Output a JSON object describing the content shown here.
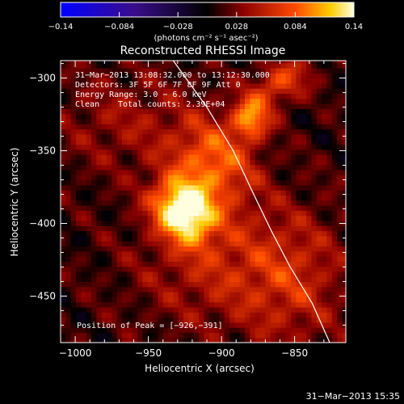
{
  "chart_data": {
    "type": "heatmap",
    "title": "Reconstructed RHESSI Image",
    "xlabel": "Heliocentric X (arcsec)",
    "ylabel": "Heliocentric Y (arcsec)",
    "xlim": [
      -1010,
      -815
    ],
    "ylim": [
      -482,
      -288
    ],
    "x_ticks": [
      -1000,
      -950,
      -900,
      -850
    ],
    "x_tick_labels": [
      "−1000",
      "−950",
      "−900",
      "−850"
    ],
    "y_ticks": [
      -300,
      -350,
      -400,
      -450
    ],
    "y_tick_labels": [
      "−300",
      "−350",
      "−400",
      "−450"
    ],
    "colorbar": {
      "min": -0.14,
      "max": 0.14,
      "ticks": [
        -0.14,
        -0.084,
        -0.028,
        0.028,
        0.084,
        0.14
      ],
      "tick_labels": [
        "−0.14",
        "−0.084",
        "−0.028",
        "0.028",
        "0.084",
        "0.14"
      ],
      "unit_label": "(photons cm⁻² s⁻¹ asec⁻²)"
    },
    "annotations": {
      "time_range": "31−Mar−2013 13:08:32.000 to 13:12:30.000",
      "detectors": "Detectors: 3F 5F 6F 7F 8F 9F Att 0",
      "energy_range": "Energy Range: 3.0 − 6.0 keV",
      "method": "Clean",
      "total_counts": "Total counts: 2.39E+04",
      "peak": "Position of Peak = [−926,−391]"
    },
    "sources": [
      {
        "x": -926,
        "y": -391,
        "peak": 0.14,
        "sx": 13,
        "sy": 16,
        "angle": 40
      },
      {
        "x": -880,
        "y": -328,
        "peak": 0.085,
        "sx": 9,
        "sy": 10,
        "angle": 0
      },
      {
        "x": -905,
        "y": -358,
        "peak": 0.075,
        "sx": 18,
        "sy": 22,
        "angle": 35
      },
      {
        "x": -860,
        "y": -303,
        "peak": 0.06,
        "sx": 16,
        "sy": 10,
        "angle": 30
      },
      {
        "x": -965,
        "y": -330,
        "peak": 0.028,
        "sx": 35,
        "sy": 25,
        "angle": 0
      },
      {
        "x": -900,
        "y": -430,
        "peak": 0.04,
        "sx": 40,
        "sy": 30,
        "angle": 0
      },
      {
        "x": -850,
        "y": -440,
        "peak": 0.035,
        "sx": 25,
        "sy": 35,
        "angle": 0
      }
    ],
    "limb_curve": {
      "x": [
        -933,
        -910,
        -892,
        -878,
        -866,
        -853,
        -838,
        -826
      ],
      "y": [
        -288,
        -320,
        -350,
        -380,
        -405,
        -430,
        -455,
        -482
      ]
    },
    "grid": false
  },
  "footer_timestamp": "31−Mar−2013 15:35"
}
